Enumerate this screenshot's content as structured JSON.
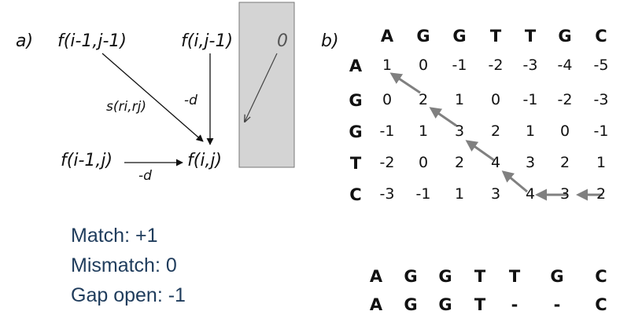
{
  "panel_a": {
    "label": "a)",
    "f_diag": "f(i-1,j-1)",
    "f_up": "f(i,j-1)",
    "f_left": "f(i-1,j)",
    "f_cur": "f(i,j)",
    "s_label": "s(ri,rj)",
    "d_vert": "-d",
    "d_horiz": "-d",
    "zero": "0"
  },
  "panel_b": {
    "label": "b)",
    "columns": [
      "A",
      "G",
      "G",
      "T",
      "T",
      "G",
      "C"
    ],
    "rows": [
      {
        "head": "A",
        "cells": [
          "1",
          "0",
          "-1",
          "-2",
          "-3",
          "-4",
          "-5"
        ]
      },
      {
        "head": "G",
        "cells": [
          "0",
          "2",
          "1",
          "0",
          "-1",
          "-2",
          "-3"
        ]
      },
      {
        "head": "G",
        "cells": [
          "-1",
          "1",
          "3",
          "2",
          "1",
          "0",
          "-1"
        ]
      },
      {
        "head": "T",
        "cells": [
          "-2",
          "0",
          "2",
          "4",
          "3",
          "2",
          "1"
        ]
      },
      {
        "head": "C",
        "cells": [
          "-3",
          "-1",
          "1",
          "3",
          "4",
          "3",
          "2"
        ]
      }
    ]
  },
  "scoring": {
    "match": "Match: +1",
    "mismatch": "Mismatch: 0",
    "gap": "Gap open: -1"
  },
  "alignment": {
    "top": [
      "A",
      "G",
      "G",
      "T",
      "T",
      "G",
      "C"
    ],
    "bottom": [
      "A",
      "G",
      "G",
      "T",
      "-",
      "-",
      "C"
    ]
  },
  "colors": {
    "shaded_box": "#d4d4d4",
    "traceback_arrow": "#808080",
    "legend_text": "#1f3c5c"
  }
}
